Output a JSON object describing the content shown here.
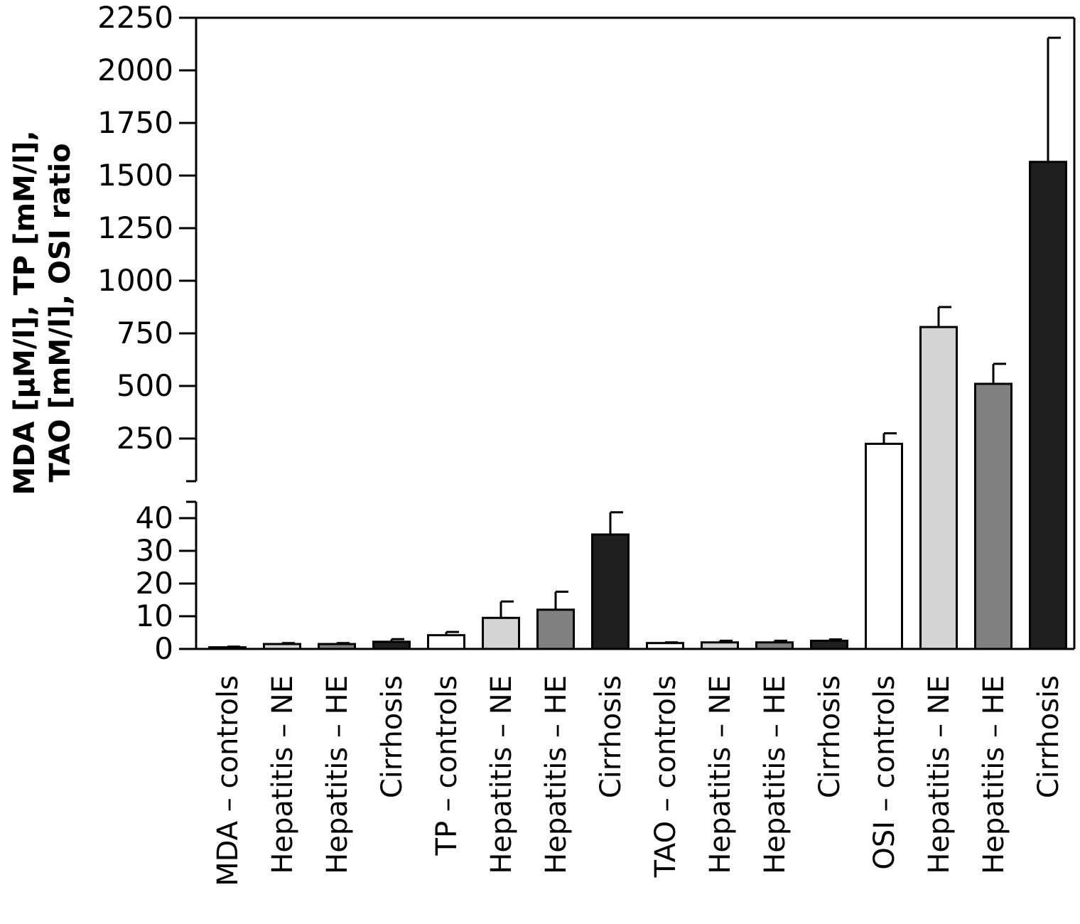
{
  "chart_data": {
    "type": "bar",
    "title": "",
    "xlabel": "",
    "ylabel": [
      "MDA [µM/l], TP [mM/l],",
      "TAO [mM/l], OSI ratio"
    ],
    "y_axis": "broken",
    "upper_ylim": [
      0,
      2250
    ],
    "upper_yticks": [
      "250",
      "500",
      "750",
      "1000",
      "1250",
      "1500",
      "1750",
      "2000",
      "2250"
    ],
    "lower_ylim": [
      0,
      45
    ],
    "lower_yticks": [
      "0",
      "10",
      "20",
      "30",
      "40"
    ],
    "grid": false,
    "legend": "none",
    "colors": {
      "controls": "#ffffff",
      "hepatitis_ne": "#d4d4d4",
      "hepatitis_he": "#808080",
      "cirrhosis": "#1e1e1e",
      "axis": "#000000"
    },
    "categories": [
      "MDA – controls",
      "Hepatitis – NE",
      "Hepatitis – HE",
      "Cirrhosis",
      "TP – controls",
      "Hepatitis – NE",
      "Hepatitis – HE",
      "Cirrhosis",
      "TAO – controls",
      "Hepatitis – NE",
      "Hepatitis – HE",
      "Cirrhosis",
      "OSI – controls",
      "Hepatitis – NE",
      "Hepatitis – HE",
      "Cirrhosis"
    ],
    "values": [
      0.5,
      1.5,
      1.5,
      2.2,
      4.2,
      9.5,
      12.0,
      35.0,
      1.8,
      2.0,
      2.0,
      2.5,
      225,
      780,
      510,
      1565
    ],
    "errors": [
      0.2,
      0.3,
      0.3,
      0.8,
      1.0,
      5.0,
      5.5,
      6.8,
      0.2,
      0.5,
      0.5,
      0.4,
      50,
      95,
      95,
      590
    ],
    "color_keys": [
      "controls",
      "hepatitis_ne",
      "hepatitis_he",
      "cirrhosis",
      "controls",
      "hepatitis_ne",
      "hepatitis_he",
      "cirrhosis",
      "controls",
      "hepatitis_ne",
      "hepatitis_he",
      "cirrhosis",
      "controls",
      "hepatitis_ne",
      "hepatitis_he",
      "cirrhosis"
    ]
  }
}
